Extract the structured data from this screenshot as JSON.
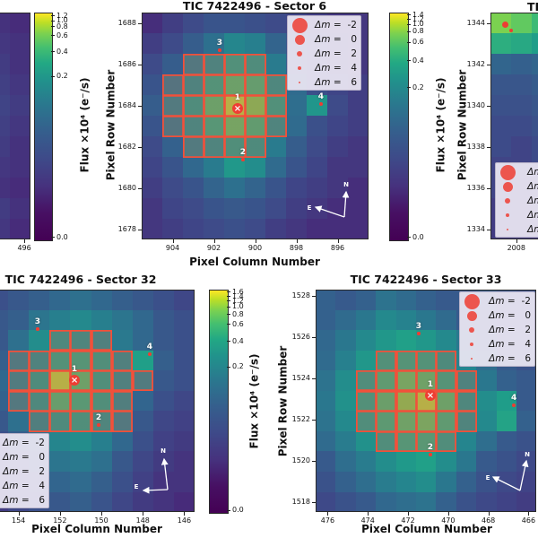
{
  "figure": {
    "bg": "#ffffff",
    "xlabel": "Pixel Column Number",
    "ylabel": "Pixel Row Number",
    "colorbar_label": "Flux ×10⁴ (e⁻/s)",
    "compass": {
      "north": "N",
      "east": "E"
    },
    "legend": {
      "symbol": "Δm",
      "equals": "=",
      "values": [
        "-2",
        "0",
        "2",
        "4",
        "6"
      ]
    },
    "colors": {
      "aperture_edge": "#f2503a",
      "aperture_fill": "rgba(125,120,112,0.5)",
      "star": "#ee3d33",
      "legend_bg": "rgba(236,231,243,0.93)",
      "legend_border": "#b9b3c9"
    }
  },
  "chart_data": [
    {
      "id": "A",
      "type": "heatmap",
      "role": "cropped-left-panel",
      "title": "",
      "vmax": 1.2,
      "xticks": [
        [
          "496",
          1.2
        ]
      ],
      "yticks": [],
      "values": [
        [
          0.02,
          0.015
        ],
        [
          0.025,
          0.02
        ],
        [
          0.03,
          0.02
        ],
        [
          0.035,
          0.025
        ],
        [
          0.04,
          0.03
        ],
        [
          0.035,
          0.025
        ],
        [
          0.03,
          0.02
        ],
        [
          0.025,
          0.02
        ],
        [
          0.02,
          0.015
        ],
        [
          0.03,
          0.02
        ],
        [
          0.025,
          0.015
        ]
      ],
      "aperture": {},
      "stars": [],
      "has_compass": false
    },
    {
      "id": "S6",
      "type": "heatmap",
      "title": "TIC 7422496 - Sector 6",
      "vmax": 1.45,
      "xticks": [
        [
          "904",
          1
        ],
        [
          "902",
          3
        ],
        [
          "900",
          5
        ],
        [
          "898",
          7
        ],
        [
          "896",
          9
        ]
      ],
      "yticks": [
        [
          "1688",
          0
        ],
        [
          "1686",
          2
        ],
        [
          "1684",
          4
        ],
        [
          "1682",
          6
        ],
        [
          "1680",
          8
        ],
        [
          "1678",
          10
        ]
      ],
      "values": [
        [
          0.02,
          0.04,
          0.06,
          0.08,
          0.08,
          0.07,
          0.06,
          0.05,
          0.04,
          0.03,
          0.03
        ],
        [
          0.04,
          0.06,
          0.1,
          0.16,
          0.25,
          0.22,
          0.12,
          0.08,
          0.05,
          0.04,
          0.03
        ],
        [
          0.06,
          0.1,
          0.18,
          0.28,
          0.42,
          0.38,
          0.2,
          0.1,
          0.06,
          0.04,
          0.03
        ],
        [
          0.08,
          0.15,
          0.28,
          0.45,
          0.65,
          0.6,
          0.32,
          0.14,
          0.07,
          0.05,
          0.04
        ],
        [
          0.1,
          0.2,
          0.38,
          0.65,
          1.35,
          0.85,
          0.42,
          0.15,
          0.32,
          0.06,
          0.04
        ],
        [
          0.08,
          0.16,
          0.3,
          0.5,
          0.72,
          0.58,
          0.3,
          0.14,
          0.07,
          0.05,
          0.04
        ],
        [
          0.06,
          0.11,
          0.2,
          0.3,
          0.4,
          0.35,
          0.2,
          0.1,
          0.06,
          0.04,
          0.03
        ],
        [
          0.05,
          0.08,
          0.13,
          0.2,
          0.33,
          0.28,
          0.14,
          0.08,
          0.05,
          0.03,
          0.03
        ],
        [
          0.04,
          0.06,
          0.08,
          0.12,
          0.16,
          0.12,
          0.08,
          0.05,
          0.04,
          0.03,
          0.02
        ],
        [
          0.03,
          0.05,
          0.06,
          0.08,
          0.09,
          0.08,
          0.06,
          0.04,
          0.03,
          0.02,
          0.02
        ],
        [
          0.03,
          0.04,
          0.05,
          0.06,
          0.07,
          0.06,
          0.04,
          0.03,
          0.02,
          0.02,
          0.02
        ]
      ],
      "aperture": {
        "2": [
          2,
          3,
          4,
          5
        ],
        "3": [
          1,
          2,
          3,
          4,
          5,
          6
        ],
        "4": [
          1,
          2,
          3,
          4,
          5,
          6
        ],
        "5": [
          1,
          2,
          3,
          4,
          5,
          6
        ],
        "6": [
          2,
          3,
          4,
          5
        ]
      },
      "stars": [
        {
          "n": "1",
          "ci": 4.15,
          "ri": 4.15,
          "r": 6,
          "cross": true
        },
        {
          "n": "2",
          "ci": 4.41,
          "ri": 6.63,
          "r": 1.8,
          "cross": false
        },
        {
          "n": "3",
          "ci": 3.28,
          "ri": 1.33,
          "r": 1.8,
          "cross": false
        },
        {
          "n": "4",
          "ci": 8.19,
          "ri": 3.93,
          "r": 2.2,
          "cross": false
        }
      ],
      "has_compass": true
    },
    {
      "id": "C",
      "type": "heatmap",
      "role": "cropped-right-panel",
      "title": "",
      "title_fragment": "TIC",
      "vmax": 1.2,
      "xticks": [
        [
          "2008",
          0.75
        ]
      ],
      "yticks": [
        [
          "1344",
          0
        ],
        [
          "1342",
          2
        ],
        [
          "1340",
          4
        ],
        [
          "1338",
          6
        ],
        [
          "1336",
          8
        ],
        [
          "1334",
          10
        ]
      ],
      "values": [
        [
          0.62,
          0.55,
          0.45
        ],
        [
          0.38,
          0.35,
          0.3
        ],
        [
          0.1,
          0.09,
          0.1
        ],
        [
          0.07,
          0.07,
          0.08
        ],
        [
          0.06,
          0.06,
          0.07
        ],
        [
          0.05,
          0.05,
          0.06
        ],
        [
          0.05,
          0.04,
          0.05
        ],
        [
          0.04,
          0.04,
          0.05
        ],
        [
          0.04,
          0.03,
          0.04
        ],
        [
          0.03,
          0.03,
          0.04
        ],
        [
          0.03,
          0.03,
          0.03
        ]
      ],
      "aperture": {},
      "stars": [
        {
          "n": "",
          "ci": 0.2,
          "ri": 0.07,
          "r": 3.5,
          "cross": false
        },
        {
          "n": "",
          "ci": 0.5,
          "ri": 0.37,
          "r": 2,
          "cross": false
        }
      ],
      "has_compass": false
    },
    {
      "id": "S32",
      "type": "heatmap",
      "title": "TIC 7422496 - Sector 32",
      "vmax": 1.65,
      "xticks": [
        [
          "154",
          1
        ],
        [
          "152",
          3
        ],
        [
          "150",
          5
        ],
        [
          "148",
          7
        ],
        [
          "146",
          9
        ]
      ],
      "yticks": [],
      "values": [
        [
          0.08,
          0.1,
          0.12,
          0.15,
          0.18,
          0.15,
          0.12,
          0.1,
          0.08,
          0.06
        ],
        [
          0.1,
          0.12,
          0.2,
          0.25,
          0.3,
          0.25,
          0.2,
          0.15,
          0.1,
          0.08
        ],
        [
          0.1,
          0.18,
          0.32,
          0.38,
          0.35,
          0.3,
          0.22,
          0.15,
          0.1,
          0.08
        ],
        [
          0.12,
          0.22,
          0.32,
          0.5,
          0.55,
          0.45,
          0.3,
          0.42,
          0.12,
          0.08
        ],
        [
          0.15,
          0.25,
          0.42,
          1.5,
          0.75,
          0.45,
          0.3,
          0.25,
          0.1,
          0.08
        ],
        [
          0.13,
          0.22,
          0.38,
          0.7,
          0.6,
          0.45,
          0.28,
          0.14,
          0.08,
          0.06
        ],
        [
          0.1,
          0.18,
          0.28,
          0.4,
          0.45,
          0.35,
          0.22,
          0.1,
          0.06,
          0.05
        ],
        [
          0.08,
          0.12,
          0.2,
          0.28,
          0.32,
          0.25,
          0.15,
          0.08,
          0.05,
          0.04
        ],
        [
          0.06,
          0.1,
          0.15,
          0.2,
          0.22,
          0.18,
          0.1,
          0.06,
          0.04,
          0.03
        ],
        [
          0.05,
          0.08,
          0.1,
          0.14,
          0.16,
          0.12,
          0.08,
          0.05,
          0.03,
          0.03
        ],
        [
          0.04,
          0.06,
          0.08,
          0.1,
          0.12,
          0.09,
          0.06,
          0.04,
          0.03,
          0.02
        ]
      ],
      "aperture": {
        "2": [
          3,
          4,
          5
        ],
        "3": [
          1,
          2,
          3,
          4,
          5,
          6
        ],
        "4": [
          1,
          2,
          3,
          4,
          5,
          6,
          7
        ],
        "5": [
          1,
          2,
          3,
          4,
          5,
          6
        ],
        "6": [
          2,
          3,
          4,
          5,
          6
        ]
      },
      "stars": [
        {
          "n": "1",
          "ci": 3.7,
          "ri": 3.98,
          "r": 6,
          "cross": true
        },
        {
          "n": "2",
          "ci": 4.87,
          "ri": 6.2,
          "r": 1.8,
          "cross": false
        },
        {
          "n": "3",
          "ci": 1.92,
          "ri": 1.45,
          "r": 1.8,
          "cross": false
        },
        {
          "n": "4",
          "ci": 7.33,
          "ri": 2.69,
          "r": 2.2,
          "cross": false
        }
      ],
      "has_compass": true
    },
    {
      "id": "S33",
      "type": "heatmap",
      "title": "TIC 7422496 - Sector 33",
      "vmax": 1.55,
      "xticks": [
        [
          "476",
          0.1
        ],
        [
          "474",
          2.1
        ],
        [
          "472",
          4.1
        ],
        [
          "470",
          6.1
        ],
        [
          "468",
          8.1
        ],
        [
          "466",
          10.1
        ]
      ],
      "yticks": [
        [
          "1528",
          -0.2
        ],
        [
          "1526",
          1.84
        ],
        [
          "1524",
          3.88
        ],
        [
          "1522",
          5.92
        ],
        [
          "1520",
          7.96
        ],
        [
          "1518",
          10.0
        ]
      ],
      "values": [
        [
          0.12,
          0.1,
          0.12,
          0.18,
          0.15,
          0.12,
          0.1,
          0.1,
          0.12,
          0.1,
          0.08
        ],
        [
          0.12,
          0.15,
          0.2,
          0.28,
          0.25,
          0.2,
          0.15,
          0.1,
          0.08,
          0.06,
          0.06
        ],
        [
          0.14,
          0.2,
          0.28,
          0.35,
          0.4,
          0.35,
          0.28,
          0.2,
          0.14,
          0.1,
          0.08
        ],
        [
          0.15,
          0.24,
          0.35,
          0.45,
          0.5,
          0.48,
          0.38,
          0.26,
          0.16,
          0.1,
          0.08
        ],
        [
          0.18,
          0.3,
          0.42,
          0.6,
          0.78,
          0.72,
          0.5,
          0.3,
          0.2,
          0.12,
          0.1
        ],
        [
          0.2,
          0.32,
          0.46,
          0.68,
          0.95,
          1.4,
          0.7,
          0.35,
          0.3,
          0.38,
          0.1
        ],
        [
          0.18,
          0.28,
          0.42,
          0.58,
          0.72,
          0.8,
          0.6,
          0.32,
          0.28,
          0.42,
          0.12
        ],
        [
          0.15,
          0.22,
          0.32,
          0.42,
          0.52,
          0.56,
          0.42,
          0.26,
          0.16,
          0.1,
          0.08
        ],
        [
          0.1,
          0.16,
          0.22,
          0.3,
          0.36,
          0.4,
          0.3,
          0.2,
          0.1,
          0.08,
          0.06
        ],
        [
          0.08,
          0.12,
          0.16,
          0.22,
          0.26,
          0.3,
          0.2,
          0.12,
          0.08,
          0.06,
          0.05
        ],
        [
          0.06,
          0.08,
          0.1,
          0.14,
          0.16,
          0.18,
          0.12,
          0.08,
          0.06,
          0.05,
          0.04
        ]
      ],
      "aperture": {
        "3": [
          3,
          4,
          5,
          6
        ],
        "4": [
          2,
          3,
          4,
          5,
          6,
          7
        ],
        "5": [
          2,
          3,
          4,
          5,
          6,
          7
        ],
        "6": [
          2,
          3,
          4,
          5,
          6,
          7
        ],
        "7": [
          3,
          4,
          5,
          6
        ]
      },
      "stars": [
        {
          "n": "1",
          "ci": 5.21,
          "ri": 4.73,
          "r": 6,
          "cross": true
        },
        {
          "n": "2",
          "ci": 5.21,
          "ri": 7.66,
          "r": 1.8,
          "cross": false
        },
        {
          "n": "3",
          "ci": 4.63,
          "ri": 1.67,
          "r": 1.8,
          "cross": false
        },
        {
          "n": "4",
          "ci": 9.37,
          "ri": 5.22,
          "r": 2.2,
          "cross": false
        }
      ],
      "has_compass": true
    }
  ],
  "colorbars": [
    {
      "id": "cbL",
      "ticks": [
        [
          "1.2",
          0.012
        ],
        [
          "1.0",
          0.035
        ],
        [
          "0.8",
          0.06
        ],
        [
          "0.6",
          0.1
        ],
        [
          "0.4",
          0.17
        ],
        [
          "0.2",
          0.28
        ],
        [
          "0.0",
          0.99
        ]
      ]
    },
    {
      "id": "cb6",
      "ticks": [
        [
          "1.4",
          0.008
        ],
        [
          "1.2",
          0.028
        ],
        [
          "1.0",
          0.051
        ],
        [
          "0.8",
          0.083
        ],
        [
          "0.6",
          0.13
        ],
        [
          "0.4",
          0.21
        ],
        [
          "0.2",
          0.33
        ],
        [
          "0.0",
          0.99
        ]
      ]
    },
    {
      "id": "cb32",
      "ticks": [
        [
          "1.6",
          0.01
        ],
        [
          "1.4",
          0.03
        ],
        [
          "1.2",
          0.05
        ],
        [
          "1.0",
          0.075
        ],
        [
          "0.8",
          0.11
        ],
        [
          "0.6",
          0.155
        ],
        [
          "0.4",
          0.23
        ],
        [
          "0.2",
          0.345
        ],
        [
          "0.0",
          0.99
        ]
      ]
    }
  ]
}
